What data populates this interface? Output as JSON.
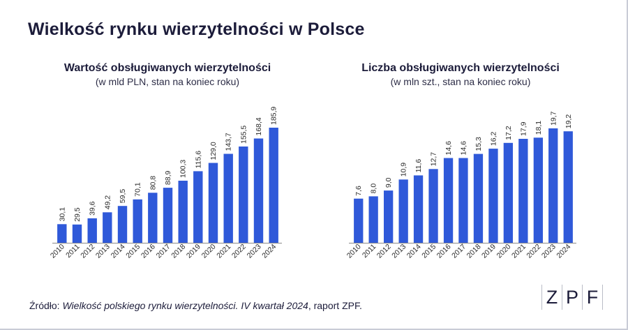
{
  "title": "Wielkość rynku wierzytelności w Polsce",
  "source": {
    "prefix": "Źródło: ",
    "italic": "Wielkość polskiego rynku wierzytelności. IV kwartał 2024",
    "suffix": ", raport ZPF."
  },
  "logo": {
    "letters": [
      "Z",
      "P",
      "F"
    ]
  },
  "accent_color": "#2f59d9",
  "chart_data": [
    {
      "type": "bar",
      "title": "Wartość obsługiwanych wierzytelności",
      "subtitle": "(w mld PLN, stan na koniec roku)",
      "categories": [
        "2010",
        "2011",
        "2012",
        "2013",
        "2014",
        "2015",
        "2016",
        "2017",
        "2018",
        "2019",
        "2020",
        "2021",
        "2022",
        "2023",
        "2024"
      ],
      "values": [
        30.1,
        29.5,
        39.6,
        49.2,
        59.5,
        70.1,
        80.8,
        88.9,
        100.3,
        115.6,
        129.0,
        143.7,
        155.5,
        168.4,
        185.9
      ],
      "labels": [
        "30,1",
        "29,5",
        "39,6",
        "49,2",
        "59,5",
        "70,1",
        "80,8",
        "88,9",
        "100,3",
        "115,6",
        "129,0",
        "143,7",
        "155,5",
        "168,4",
        "185,9"
      ],
      "ylim": [
        0,
        185.9
      ],
      "grid": false,
      "color": "#2f59d9"
    },
    {
      "type": "bar",
      "title": "Liczba obsługiwanych wierzytelności",
      "subtitle": "(w mln szt., stan na koniec  roku)",
      "categories": [
        "2010",
        "2011",
        "2012",
        "2013",
        "2014",
        "2015",
        "2016",
        "2017",
        "2018",
        "2019",
        "2020",
        "2021",
        "2022",
        "2023",
        "2024"
      ],
      "values": [
        7.6,
        8.0,
        9.0,
        10.9,
        11.6,
        12.7,
        14.6,
        14.6,
        15.3,
        16.2,
        17.2,
        17.9,
        18.1,
        19.7,
        19.2
      ],
      "labels": [
        "7,6",
        "8,0",
        "9,0",
        "10,9",
        "11,6",
        "12,7",
        "14,6",
        "14,6",
        "15,3",
        "16,2",
        "17,2",
        "17,9",
        "18,1",
        "19,7",
        "19,2"
      ],
      "ylim": [
        0,
        19.7
      ],
      "grid": false,
      "color": "#2f59d9"
    }
  ]
}
